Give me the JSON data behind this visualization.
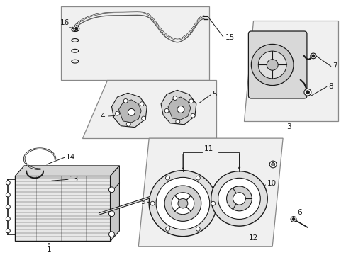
{
  "background_color": "#ffffff",
  "line_color": "#1a1a1a",
  "fig_width": 4.89,
  "fig_height": 3.6,
  "dpi": 100,
  "font_size": 7.5,
  "font_size_small": 6.5,
  "border_color": "#888888",
  "fill_light": "#e8e8e8",
  "fill_lighter": "#f0f0f0"
}
